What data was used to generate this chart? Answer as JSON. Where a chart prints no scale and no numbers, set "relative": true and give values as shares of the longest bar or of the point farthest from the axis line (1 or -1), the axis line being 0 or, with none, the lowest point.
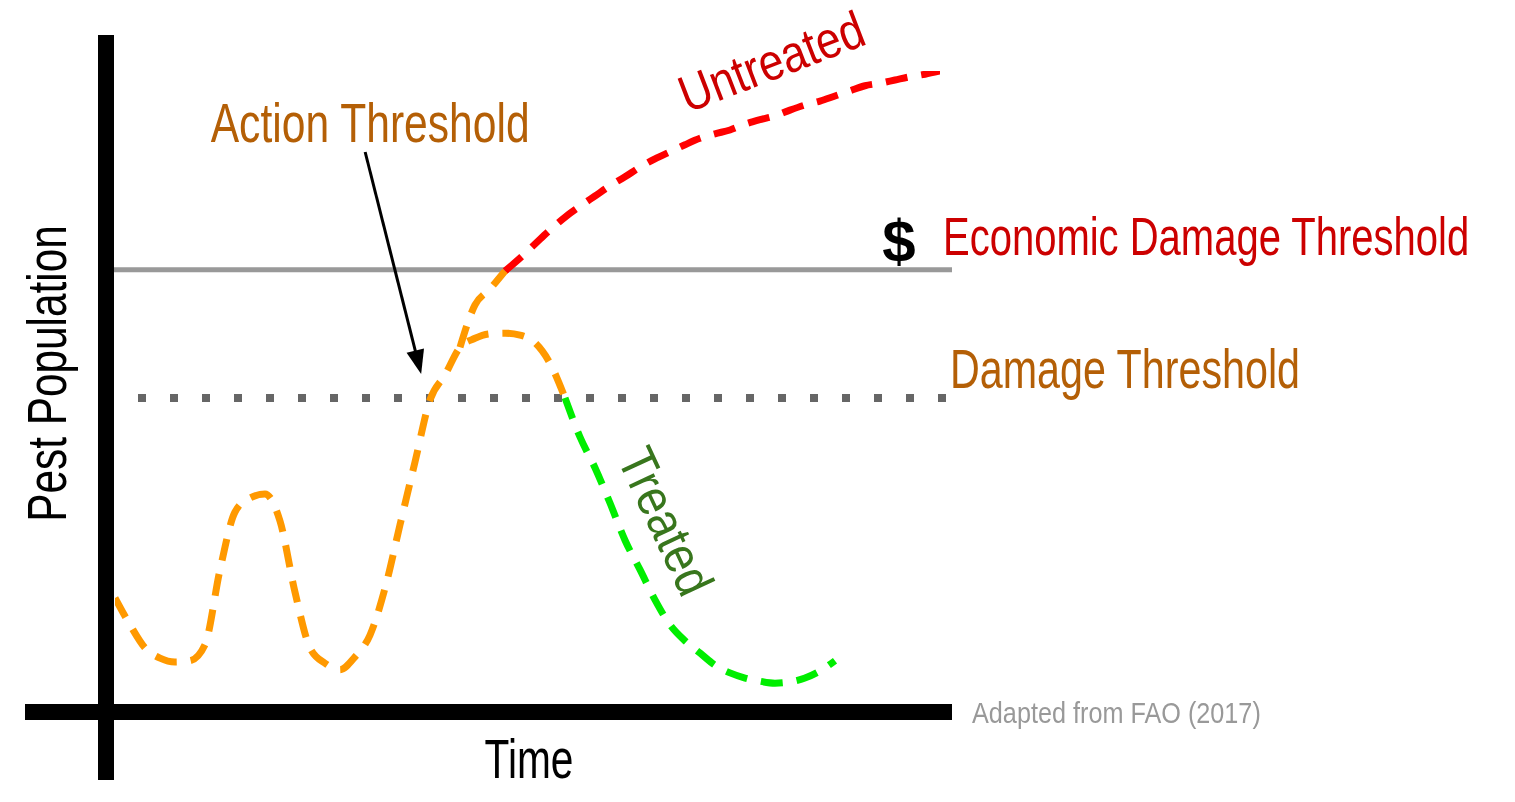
{
  "chart_data": {
    "type": "line",
    "relative": true,
    "xlabel": "Time",
    "ylabel": "Pest Population",
    "categories": [
      null,
      null,
      null,
      null,
      null,
      null,
      null,
      null,
      null,
      null,
      null,
      null,
      null,
      null,
      null,
      null,
      null,
      null,
      null,
      null,
      null,
      null,
      null,
      null,
      null,
      null,
      null,
      null,
      null,
      null,
      null,
      null,
      null,
      null,
      null,
      null,
      null,
      null,
      null,
      null,
      null,
      null,
      null,
      null,
      null,
      null,
      null,
      null,
      null,
      null,
      null,
      null,
      null,
      null,
      null,
      null
    ],
    "series": [
      {
        "color": "#ff9900",
        "values": [
          0.178,
          0.136,
          0.1,
          0.084,
          0.078,
          0.08,
          0.105,
          0.222,
          0.312,
          0.334,
          0.34,
          0.298,
          0.187,
          0.1,
          0.076,
          0.066,
          0.086,
          0.12,
          0.193,
          0.292,
          0.39,
          0.487,
          0.526,
          0.569,
          0.583,
          0.59,
          0.591,
          0.588,
          0.576,
          0.544,
          0.49,
          null,
          null,
          null,
          null,
          null,
          null,
          null,
          null,
          null,
          null,
          null,
          null,
          null,
          null,
          null,
          null,
          null,
          null,
          null,
          null,
          null,
          null,
          null,
          null,
          null
        ]
      },
      {
        "name": "Treated",
        "color": "#00ee00",
        "values": [
          null,
          null,
          null,
          null,
          null,
          null,
          null,
          null,
          null,
          null,
          null,
          null,
          null,
          null,
          null,
          null,
          null,
          null,
          null,
          null,
          null,
          null,
          null,
          null,
          null,
          null,
          null,
          null,
          null,
          null,
          0.49,
          0.429,
          0.381,
          0.326,
          0.268,
          0.222,
          0.175,
          0.136,
          0.111,
          0.092,
          0.073,
          0.061,
          0.053,
          0.048,
          0.045,
          0.047,
          0.053,
          0.064,
          0.08,
          null,
          null,
          null,
          null,
          null,
          null,
          null
        ]
      },
      {
        "name": "Untreated",
        "color": "#ff0000",
        "values": [
          null,
          null,
          null,
          null,
          null,
          null,
          null,
          null,
          null,
          null,
          null,
          null,
          null,
          null,
          null,
          null,
          null,
          null,
          null,
          null,
          null,
          null,
          null,
          null,
          null,
          null,
          0.688,
          0.708,
          0.73,
          0.752,
          0.772,
          0.789,
          0.805,
          0.821,
          0.835,
          0.85,
          0.863,
          0.874,
          0.885,
          0.895,
          0.902,
          0.908,
          0.917,
          0.924,
          0.93,
          0.939,
          0.947,
          0.953,
          0.961,
          0.969,
          0.977,
          0.981,
          0.986,
          0.991,
          0.995,
          1
        ]
      },
      {
        "color": "#ff9900",
        "values": [
          null,
          null,
          null,
          null,
          null,
          null,
          null,
          null,
          null,
          null,
          null,
          null,
          null,
          null,
          null,
          null,
          null,
          null,
          null,
          null,
          null,
          null,
          null,
          0.569,
          0.635,
          0.66,
          0.688,
          null,
          null,
          null,
          null,
          null,
          null,
          null,
          null,
          null,
          null,
          null,
          null,
          null,
          null,
          null,
          null,
          null,
          null,
          null,
          null,
          null,
          null,
          null,
          null,
          null,
          null,
          null,
          null,
          null
        ]
      }
    ],
    "ref_lines": [
      {
        "axis": "y",
        "value": 0.69,
        "label": "Economic Damage Threshold",
        "color": "#999999",
        "line_style": "solid"
      },
      {
        "axis": "y",
        "value": 0.49,
        "label": "Damage Threshold",
        "color": "#666666",
        "line_style": "dotted"
      }
    ],
    "annotations": [
      "Action Threshold",
      {
        "text": "$",
        "y": 0.69
      },
      "Adapted from FAO (2017)"
    ],
    "legend": false,
    "grid": false,
    "marker": "none",
    "line_style": "dashed"
  }
}
